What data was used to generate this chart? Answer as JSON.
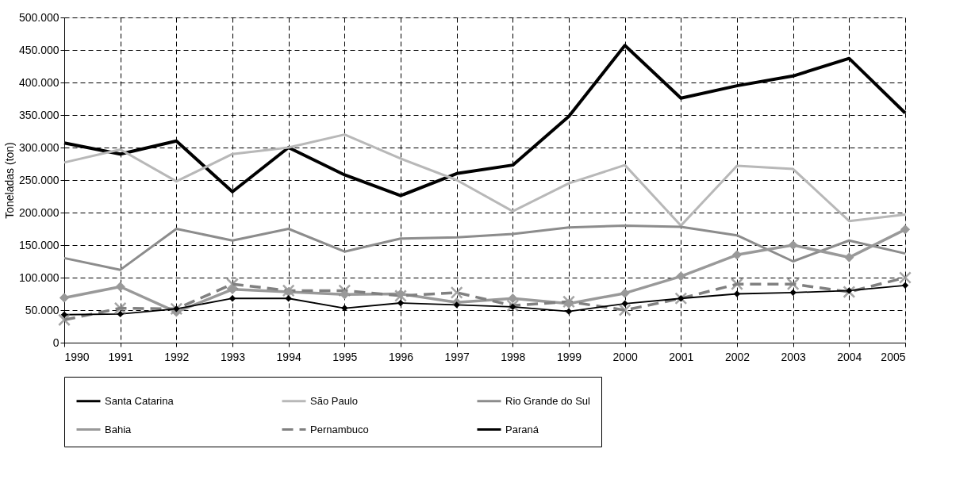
{
  "chart_data": {
    "type": "line",
    "ylabel": "Toneladas (ton)",
    "categories": [
      "1990",
      "1991",
      "1992",
      "1993",
      "1994",
      "1995",
      "1996",
      "1997",
      "1998",
      "1999",
      "2000",
      "2001",
      "2002",
      "2003",
      "2004",
      "2005"
    ],
    "ylim": [
      0,
      500000
    ],
    "yticks": [
      {
        "value": 0,
        "label": "0"
      },
      {
        "value": 50000,
        "label": "50.000"
      },
      {
        "value": 100000,
        "label": "100.000"
      },
      {
        "value": 150000,
        "label": "150.000"
      },
      {
        "value": 200000,
        "label": "200.000"
      },
      {
        "value": 250000,
        "label": "250.000"
      },
      {
        "value": 300000,
        "label": "300.000"
      },
      {
        "value": 350000,
        "label": "350.000"
      },
      {
        "value": 400000,
        "label": "400.000"
      },
      {
        "value": 450000,
        "label": "450.000"
      },
      {
        "value": 500000,
        "label": "500.000"
      }
    ],
    "grid": true,
    "legend": "bottom",
    "series": [
      {
        "name": "Santa Catarina",
        "color": "#000000",
        "marker": "none",
        "line_style": "solid",
        "values": [
          307000,
          290000,
          310000,
          232000,
          300000,
          258000,
          226000,
          260000,
          273000,
          348000,
          457000,
          376000,
          395000,
          410000,
          437000,
          353000
        ]
      },
      {
        "name": "São Paulo",
        "color": "#b8b8b8",
        "marker": "none",
        "line_style": "solid",
        "values": [
          277000,
          297000,
          248000,
          290000,
          300000,
          320000,
          283000,
          250000,
          202000,
          245000,
          273000,
          180000,
          272000,
          267000,
          187000,
          197000
        ]
      },
      {
        "name": "Rio Grande do Sul",
        "color": "#8c8c8c",
        "marker": "none",
        "line_style": "solid",
        "values": [
          130000,
          112000,
          175000,
          157000,
          175000,
          140000,
          160000,
          162000,
          167000,
          177000,
          180000,
          178000,
          165000,
          125000,
          157000,
          137000
        ]
      },
      {
        "name": "Bahia",
        "color": "#999999",
        "marker": "diamond",
        "line_style": "solid",
        "values": [
          69000,
          86000,
          47000,
          82000,
          78000,
          74000,
          75000,
          62000,
          68000,
          60000,
          76000,
          102000,
          135000,
          150000,
          131000,
          174000
        ]
      },
      {
        "name": "Pernambuco",
        "color": "#808080",
        "marker": "cross",
        "line_style": "dashed",
        "values": [
          35000,
          53000,
          52000,
          90000,
          80000,
          80000,
          72000,
          77000,
          57000,
          63000,
          50000,
          68000,
          90000,
          90000,
          78000,
          100000
        ]
      },
      {
        "name": "Paraná",
        "color": "#000000",
        "marker": "diamond",
        "line_style": "solid",
        "values": [
          43000,
          44000,
          52000,
          68000,
          68000,
          53000,
          61000,
          58000,
          55000,
          48000,
          60000,
          68000,
          75000,
          77000,
          80000,
          88000
        ]
      }
    ]
  }
}
